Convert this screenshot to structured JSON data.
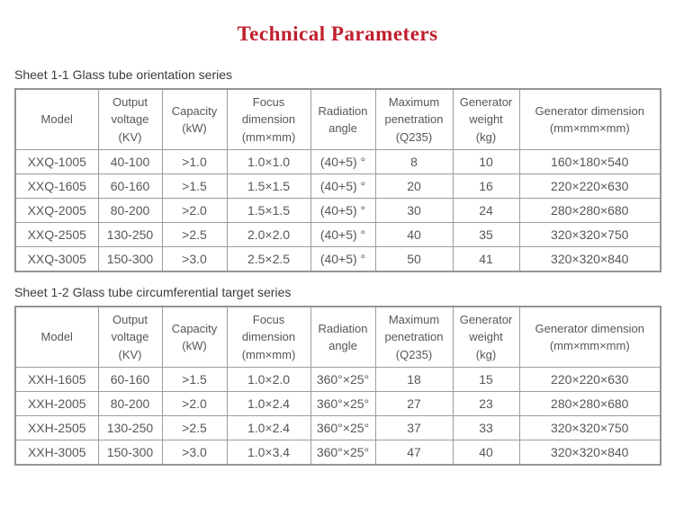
{
  "title": "Technical Parameters",
  "colors": {
    "title_text": "#c01f2e",
    "table_text": "#55575a",
    "caption_text": "#3c3c3c",
    "border": "#9c9c9c",
    "background": "#ffffff"
  },
  "tables": [
    {
      "caption": "Sheet 1-1 Glass tube orientation series",
      "headers": [
        "Model",
        "Output\nvoltage\n(KV)",
        "Capacity\n(kW)",
        "Focus\ndimension\n(mm×mm)",
        "Radiation\nangle",
        "Maximum\npenetration\n(Q235)",
        "Generator\nweight\n(kg)",
        "Generator dimension\n(mm×mm×mm)"
      ],
      "rows": [
        [
          "XXQ-1005",
          "40-100",
          ">1.0",
          "1.0×1.0",
          "(40+5) °",
          "8",
          "10",
          "160×180×540"
        ],
        [
          "XXQ-1605",
          "60-160",
          ">1.5",
          "1.5×1.5",
          "(40+5) °",
          "20",
          "16",
          "220×220×630"
        ],
        [
          "XXQ-2005",
          "80-200",
          ">2.0",
          "1.5×1.5",
          "(40+5) °",
          "30",
          "24",
          "280×280×680"
        ],
        [
          "XXQ-2505",
          "130-250",
          ">2.5",
          "2.0×2.0",
          "(40+5) °",
          "40",
          "35",
          "320×320×750"
        ],
        [
          "XXQ-3005",
          "150-300",
          ">3.0",
          "2.5×2.5",
          "(40+5) °",
          "50",
          "41",
          "320×320×840"
        ]
      ]
    },
    {
      "caption": "Sheet 1-2 Glass tube circumferential target series",
      "headers": [
        "Model",
        "Output\nvoltage\n(KV)",
        "Capacity\n(kW)",
        "Focus\ndimension\n(mm×mm)",
        "Radiation\nangle",
        "Maximum\npenetration\n(Q235)",
        "Generator\nweight\n(kg)",
        "Generator dimension\n(mm×mm×mm)"
      ],
      "rows": [
        [
          "XXH-1605",
          "60-160",
          ">1.5",
          "1.0×2.0",
          "360°×25°",
          "18",
          "15",
          "220×220×630"
        ],
        [
          "XXH-2005",
          "80-200",
          ">2.0",
          "1.0×2.4",
          "360°×25°",
          "27",
          "23",
          "280×280×680"
        ],
        [
          "XXH-2505",
          "130-250",
          ">2.5",
          "1.0×2.4",
          "360°×25°",
          "37",
          "33",
          "320×320×750"
        ],
        [
          "XXH-3005",
          "150-300",
          ">3.0",
          "1.0×3.4",
          "360°×25°",
          "47",
          "40",
          "320×320×840"
        ]
      ]
    }
  ]
}
